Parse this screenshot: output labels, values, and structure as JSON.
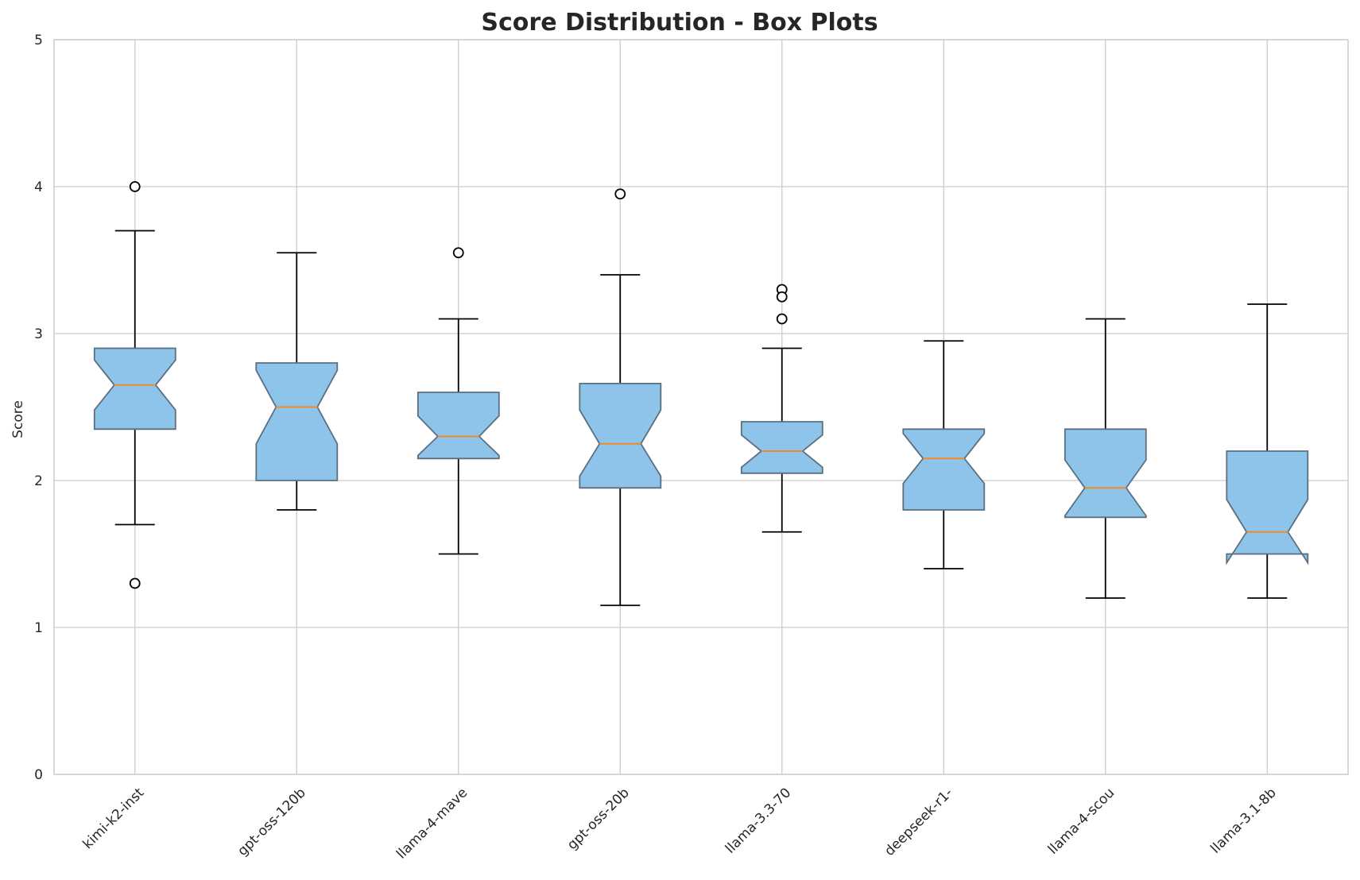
{
  "chart_data": {
    "type": "box",
    "title": "Score Distribution - Box Plots",
    "xlabel": "",
    "ylabel": "Score",
    "ylim": [
      0,
      5
    ],
    "yticks": [
      "0",
      "1",
      "2",
      "3",
      "4",
      "5"
    ],
    "grid": true,
    "notched": true,
    "colors": {
      "box_fill": "#8ec4ea",
      "box_edge": "#5a6f80",
      "median": "#f08a24",
      "whisker": "#000000",
      "grid": "#cccccc",
      "axis": "#cccccc"
    },
    "categories": [
      "kimi-k2-inst",
      "gpt-oss-120b",
      "llama-4-mave",
      "gpt-oss-20b",
      "llama-3.3-70",
      "deepseek-r1-",
      "llama-4-scou",
      "llama-3.1-8b"
    ],
    "boxes": [
      {
        "name": "kimi-k2-inst",
        "whislo": 1.7,
        "q1": 2.35,
        "med": 2.65,
        "q3": 2.9,
        "whishi": 3.7,
        "notch_lo": 2.48,
        "notch_hi": 2.82,
        "fliers": [
          4.0,
          1.3
        ]
      },
      {
        "name": "gpt-oss-120b",
        "whislo": 1.8,
        "q1": 2.0,
        "med": 2.5,
        "q3": 2.8,
        "whishi": 3.55,
        "notch_lo": 2.25,
        "notch_hi": 2.75,
        "fliers": []
      },
      {
        "name": "llama-4-mave",
        "whislo": 1.5,
        "q1": 2.15,
        "med": 2.3,
        "q3": 2.6,
        "whishi": 3.1,
        "notch_lo": 2.17,
        "notch_hi": 2.44,
        "fliers": [
          3.55
        ]
      },
      {
        "name": "gpt-oss-20b",
        "whislo": 1.15,
        "q1": 1.95,
        "med": 2.25,
        "q3": 2.66,
        "whishi": 3.4,
        "notch_lo": 2.03,
        "notch_hi": 2.48,
        "fliers": [
          3.95
        ]
      },
      {
        "name": "llama-3.3-70",
        "whislo": 1.65,
        "q1": 2.05,
        "med": 2.2,
        "q3": 2.4,
        "whishi": 2.9,
        "notch_lo": 2.09,
        "notch_hi": 2.31,
        "fliers": [
          3.3,
          3.25,
          3.1
        ]
      },
      {
        "name": "deepseek-r1-",
        "whislo": 1.4,
        "q1": 1.8,
        "med": 2.15,
        "q3": 2.35,
        "whishi": 2.95,
        "notch_lo": 1.98,
        "notch_hi": 2.32,
        "fliers": []
      },
      {
        "name": "llama-4-scou",
        "whislo": 1.2,
        "q1": 1.75,
        "med": 1.95,
        "q3": 2.35,
        "whishi": 3.1,
        "notch_lo": 1.76,
        "notch_hi": 2.14,
        "fliers": []
      },
      {
        "name": "llama-3.1-8b",
        "whislo": 1.2,
        "q1": 1.5,
        "med": 1.65,
        "q3": 2.2,
        "whishi": 3.2,
        "notch_lo": 1.44,
        "notch_hi": 1.87,
        "fliers": []
      }
    ]
  }
}
